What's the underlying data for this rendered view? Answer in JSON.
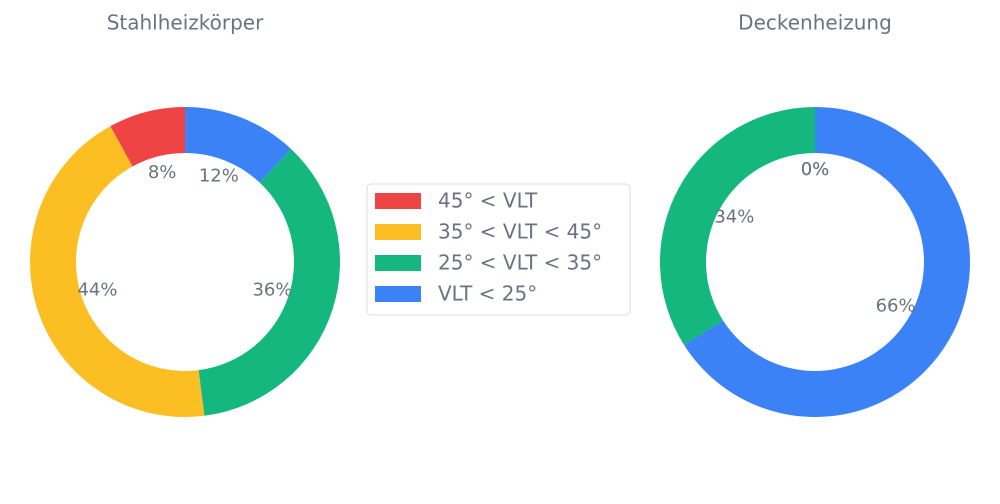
{
  "chart_data": [
    {
      "type": "pie",
      "title": "Stahlheizkörper",
      "donut": true,
      "categories": [
        "45° < VLT",
        "35° < VLT < 45°",
        "25° < VLT < 35°",
        "VLT < 25°"
      ],
      "colors": [
        "#ef4444",
        "#fbbf24",
        "#14b87f",
        "#3b82f6"
      ],
      "values": [
        8,
        44,
        36,
        12
      ],
      "value_labels": [
        "8%",
        "44%",
        "36%",
        "12%"
      ],
      "legend": "right"
    },
    {
      "type": "pie",
      "title": "Deckenheizung",
      "donut": true,
      "categories": [
        "45° < VLT",
        "35° < VLT < 45°",
        "25° < VLT < 35°",
        "VLT < 25°"
      ],
      "colors": [
        "#ef4444",
        "#fbbf24",
        "#14b87f",
        "#3b82f6"
      ],
      "values": [
        0,
        0,
        34,
        66
      ],
      "value_labels": [
        "0%",
        "0%",
        "34%",
        "66%"
      ]
    }
  ]
}
